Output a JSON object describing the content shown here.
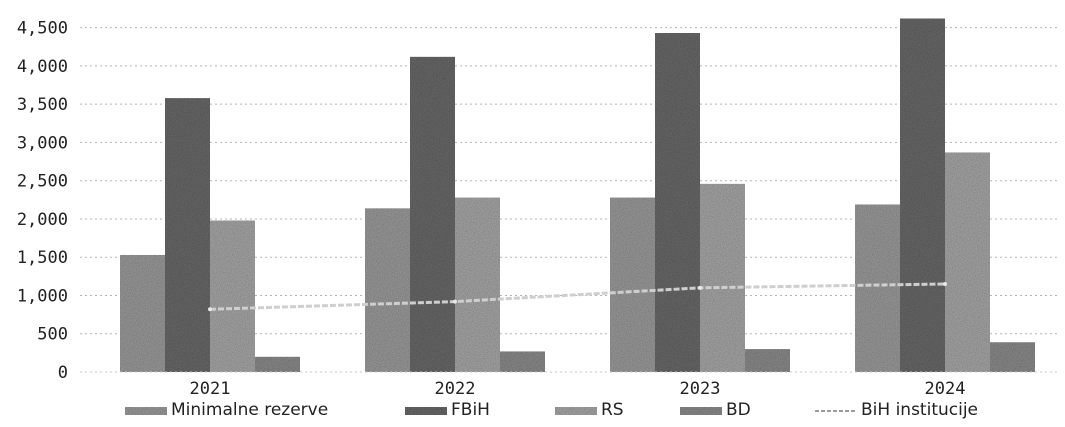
{
  "chart_data": {
    "type": "bar",
    "categories": [
      "2021",
      "2022",
      "2023",
      "2024"
    ],
    "series": [
      {
        "name": "Minimalne rezerve",
        "type": "bar",
        "values": [
          1530,
          2140,
          2280,
          2190
        ],
        "color": "#9c9c9c"
      },
      {
        "name": "FBiH",
        "type": "bar",
        "values": [
          3580,
          4120,
          4430,
          4620
        ],
        "color": "#6a6a6a"
      },
      {
        "name": "RS",
        "type": "bar",
        "values": [
          1980,
          2280,
          2460,
          2870
        ],
        "color": "#a8a8a8"
      },
      {
        "name": "BD",
        "type": "bar",
        "values": [
          200,
          270,
          300,
          390
        ],
        "color": "#8c8c8c"
      },
      {
        "name": "BiH institucije",
        "type": "line",
        "values": [
          820,
          920,
          1100,
          1150
        ],
        "color": "#cfcfcf"
      }
    ],
    "yticks": [
      "0",
      "500",
      "1,000",
      "1,500",
      "2,000",
      "2,500",
      "3,000",
      "3,500",
      "4,000",
      "4,500"
    ],
    "ylim": [
      0,
      4600
    ],
    "grid": true,
    "legend_position": "bottom",
    "title": "",
    "xlabel": "",
    "ylabel": ""
  }
}
